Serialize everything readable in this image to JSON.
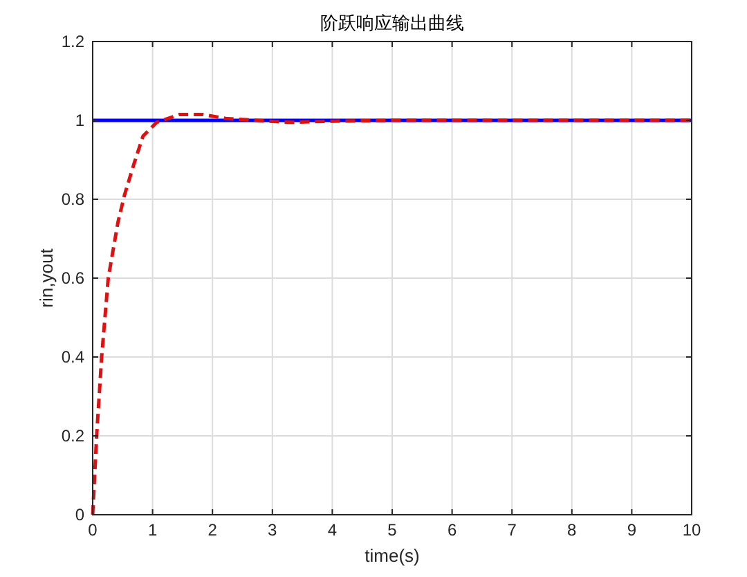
{
  "chart_data": {
    "type": "line",
    "title": "阶跃响应输出曲线",
    "xlabel": "time(s)",
    "ylabel": "rin,yout",
    "xlim": [
      0,
      10
    ],
    "ylim": [
      0,
      1.2
    ],
    "xticks": [
      0,
      1,
      2,
      3,
      4,
      5,
      6,
      7,
      8,
      9,
      10
    ],
    "yticks": [
      0,
      0.2,
      0.4,
      0.6,
      0.8,
      1,
      1.2
    ],
    "grid": true,
    "series": [
      {
        "color": "#0000ff",
        "line_style": "solid",
        "x": [
          0,
          10
        ],
        "values": [
          1,
          1
        ]
      },
      {
        "color": "#dd1111",
        "line_style": "dashed",
        "x": [
          0,
          0.07,
          0.15,
          0.26,
          0.42,
          0.53,
          0.69,
          0.84,
          1.07,
          1.45,
          1.84,
          2.22,
          2.92,
          3.3,
          4,
          5,
          6,
          7,
          8,
          9,
          10
        ],
        "values": [
          0,
          0.21,
          0.4,
          0.6,
          0.74,
          0.81,
          0.89,
          0.96,
          0.995,
          1.015,
          1.015,
          1.005,
          0.998,
          0.995,
          0.998,
          1,
          1,
          1,
          1,
          1,
          1
        ]
      }
    ]
  }
}
